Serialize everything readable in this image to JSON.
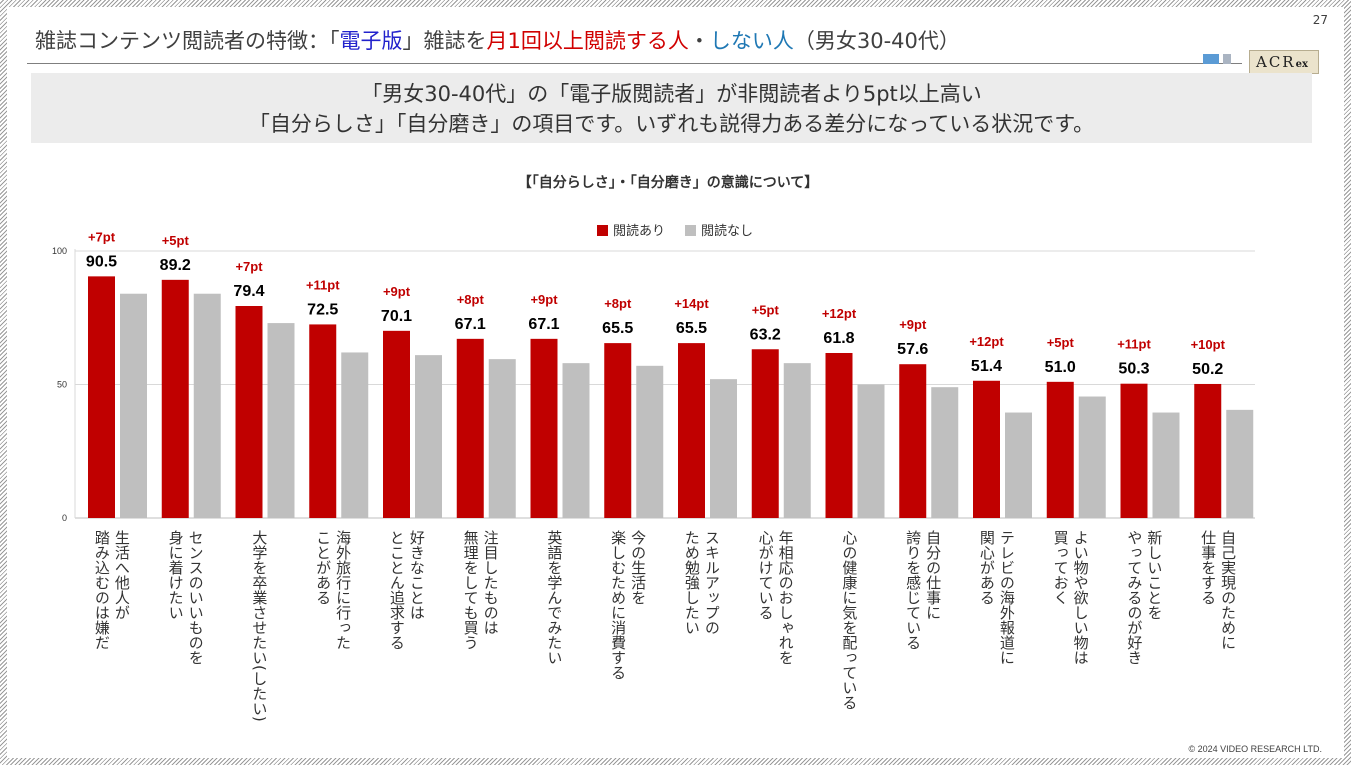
{
  "header": {
    "title_parts": [
      {
        "text": "雑誌コンテンツ閲読者の特徴：「",
        "color": "default"
      },
      {
        "text": "電子版",
        "color": "blue"
      },
      {
        "text": "」雑誌を",
        "color": "default"
      },
      {
        "text": "月1回以上閲読する人",
        "color": "red"
      },
      {
        "text": "・",
        "color": "default"
      },
      {
        "text": "しない人",
        "color": "teal"
      },
      {
        "text": "（男女30-40代）",
        "color": "default"
      }
    ],
    "page_number": "27",
    "logo_text": "ACR",
    "logo_suffix": "ex"
  },
  "summary": {
    "line1": "「男女30-40代」の「電子版閲読者」が非閲読者より5pt以上高い",
    "line2": "「自分らしさ」「自分磨き」の項目です。いずれも説得力ある差分になっている状況です。"
  },
  "footer": {
    "copyright": "© 2024 VIDEO RESEARCH LTD."
  },
  "colors": {
    "readers": "#c00000",
    "non_readers": "#bfbfbf",
    "diff_label": "#c00000",
    "title_blue": "#2222cc",
    "title_red": "#d00000",
    "title_teal": "#1f78b4"
  },
  "chart_data": {
    "type": "bar",
    "title": "【「自分らしさ」・「自分磨き」の意識について】",
    "ylim": [
      0,
      100
    ],
    "yticks": [
      0,
      50,
      100
    ],
    "grid": true,
    "legend_position": "top-center",
    "categories": [
      [
        "生活へ他人が",
        "踏み込むのは嫌だ"
      ],
      [
        "センスのいいものを",
        "身に着けたい"
      ],
      [
        "大学を卒業させたい(したい)"
      ],
      [
        "海外旅行に行った",
        "ことがある"
      ],
      [
        "好きなことは",
        "とことん追求する"
      ],
      [
        "注目したものは",
        "無理をしても買う"
      ],
      [
        "英語を学んでみたい"
      ],
      [
        "今の生活を",
        "楽しむために消費する"
      ],
      [
        "スキルアップの",
        "ため勉強したい"
      ],
      [
        "年相応のおしゃれを",
        "心がけている"
      ],
      [
        "心の健康に気を配っている"
      ],
      [
        "自分の仕事に",
        "誇りを感じている"
      ],
      [
        "テレビの海外報道に",
        "関心がある"
      ],
      [
        "よい物や欲しい物は",
        "買っておく"
      ],
      [
        "新しいことを",
        "やってみるのが好き"
      ],
      [
        "自己実現のために",
        "仕事をする"
      ]
    ],
    "series": [
      {
        "name": "閲読あり",
        "color": "#c00000",
        "values": [
          90.5,
          89.2,
          79.4,
          72.5,
          70.1,
          67.1,
          67.1,
          65.5,
          65.5,
          63.2,
          61.8,
          57.6,
          51.4,
          51.0,
          50.3,
          50.2
        ],
        "labels": [
          "90.5",
          "89.2",
          "79.4",
          "72.5",
          "70.1",
          "67.1",
          "67.1",
          "65.5",
          "65.5",
          "63.2",
          "61.8",
          "57.6",
          "51.4",
          "51.0",
          "50.3",
          "50.2"
        ]
      },
      {
        "name": "閲読なし",
        "color": "#bfbfbf",
        "values": [
          84,
          84,
          73,
          62,
          61,
          59.5,
          58,
          57,
          52,
          58,
          50,
          49,
          39.5,
          45.5,
          39.5,
          40.5
        ]
      }
    ],
    "diff_labels": [
      "+7pt",
      "+5pt",
      "+7pt",
      "+11pt",
      "+9pt",
      "+8pt",
      "+9pt",
      "+8pt",
      "+14pt",
      "+5pt",
      "+12pt",
      "+9pt",
      "+12pt",
      "+5pt",
      "+11pt",
      "+10pt"
    ]
  }
}
